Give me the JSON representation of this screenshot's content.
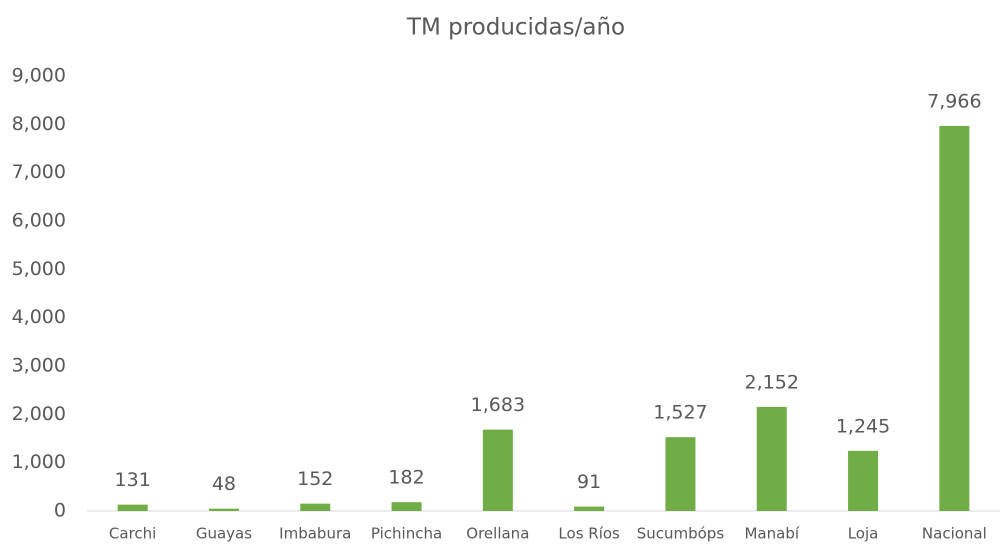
{
  "chart_data": {
    "type": "bar",
    "title": "TM producidas/año",
    "categories": [
      "Carchi",
      "Guayas",
      "Imbabura",
      "Pichincha",
      "Orellana",
      "Los Ríos",
      "Sucumbóps",
      "Manabí",
      "Loja",
      "Nacional"
    ],
    "values": [
      131,
      48,
      152,
      182,
      1683,
      91,
      1527,
      2152,
      1245,
      7966
    ],
    "value_labels": [
      "131",
      "48",
      "152",
      "182",
      "1,683",
      "91",
      "1,527",
      "2,152",
      "1,245",
      "7,966"
    ],
    "color": "#70ad47",
    "ylim": [
      0,
      9000
    ],
    "yticks": [
      0,
      {
        "value": 1000,
        "label": "1,000"
      },
      {
        "value": 2000,
        "label": "2,000"
      },
      {
        "value": 3000,
        "label": "3,000"
      },
      {
        "value": 4000,
        "label": "4,000"
      },
      {
        "value": 5000,
        "label": "5,000"
      },
      {
        "value": 6000,
        "label": "6,000"
      },
      {
        "value": 7000,
        "label": "7,000"
      },
      {
        "value": 8000,
        "label": "8,000"
      },
      {
        "value": 9000,
        "label": "9,000"
      }
    ],
    "grid": false
  }
}
